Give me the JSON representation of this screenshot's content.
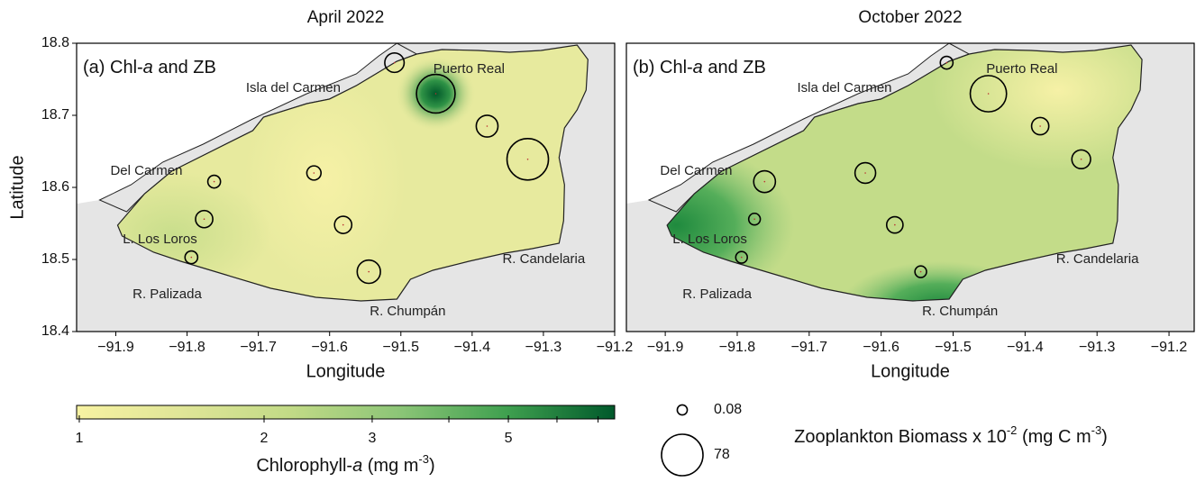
{
  "places": [
    "Puerto Real",
    "Isla del Carmen",
    "Del Carmen",
    "L. Los Loros",
    "R. Palizada",
    "R. Chumpán",
    "R. Candelaria"
  ],
  "stations": [
    {
      "lon": -91.509,
      "lat": 18.773
    },
    {
      "lon": -91.451,
      "lat": 18.73
    },
    {
      "lon": -91.379,
      "lat": 18.685
    },
    {
      "lon": -91.322,
      "lat": 18.639
    },
    {
      "lon": -91.622,
      "lat": 18.62
    },
    {
      "lon": -91.762,
      "lat": 18.608
    },
    {
      "lon": -91.776,
      "lat": 18.556
    },
    {
      "lon": -91.581,
      "lat": 18.548
    },
    {
      "lon": -91.794,
      "lat": 18.503
    },
    {
      "lon": -91.545,
      "lat": 18.483
    }
  ],
  "panels": [
    {
      "title": "April 2022",
      "label": [
        "(a) Chl-",
        "a",
        " and ZB"
      ],
      "xlabel": "Longitude",
      "ylabel": "Latitude",
      "xlim": [
        -91.955,
        -91.2
      ],
      "ylim": [
        18.4,
        18.8
      ],
      "xticks": [
        {
          "value": -91.9,
          "label": "−91.9"
        },
        {
          "value": -91.8,
          "label": "−91.8"
        },
        {
          "value": -91.7,
          "label": "−91.7"
        },
        {
          "value": -91.6,
          "label": "−91.6"
        },
        {
          "value": -91.5,
          "label": "−91.5"
        },
        {
          "value": -91.4,
          "label": "−91.4"
        },
        {
          "value": -91.3,
          "label": "−91.3"
        },
        {
          "value": -91.2,
          "label": "−91.2"
        }
      ],
      "yticks": [
        18.4,
        18.5,
        18.6,
        18.7,
        18.8
      ],
      "biomass": [
        8,
        65,
        12,
        78,
        2,
        1,
        5,
        5,
        1,
        15
      ]
    },
    {
      "title": "October 2022",
      "label": [
        "(b) Chl-",
        "a",
        " and ZB"
      ],
      "xlabel": "Longitude",
      "xlim": [
        -91.954,
        -91.165
      ],
      "ylim": [
        18.4,
        18.8
      ],
      "xticks": [
        {
          "value": -91.9,
          "label": "−91.9"
        },
        {
          "value": -91.8,
          "label": "−91.8"
        },
        {
          "value": -91.7,
          "label": "−91.7"
        },
        {
          "value": -91.6,
          "label": "−91.6"
        },
        {
          "value": -91.5,
          "label": "−91.5"
        },
        {
          "value": -91.4,
          "label": "−91.4"
        },
        {
          "value": -91.3,
          "label": "−91.3"
        },
        {
          "value": -91.2,
          "label": "−91.2"
        }
      ],
      "biomass": [
        1,
        55,
        5,
        7,
        10,
        12,
        0.5,
        4,
        0.5,
        0.5
      ]
    }
  ],
  "colorbar": {
    "title": [
      "Chlorophyll-",
      "a",
      " (mg m",
      "-3",
      ")"
    ],
    "lim": [
      0.99,
      7.45
    ],
    "log": true,
    "ticks": [
      1,
      2,
      3,
      5
    ],
    "minor_ticks": [
      4,
      6,
      7
    ],
    "colors": [
      "#f7f2a2",
      "#dfe597",
      "#c1da86",
      "#8cc577",
      "#3fa04f",
      "#00592b"
    ]
  },
  "size_legend": {
    "title": [
      "Zooplankton Biomass x 10",
      "-2",
      " (mg C m",
      "-3",
      ")"
    ],
    "entries": [
      0.08,
      78
    ]
  }
}
